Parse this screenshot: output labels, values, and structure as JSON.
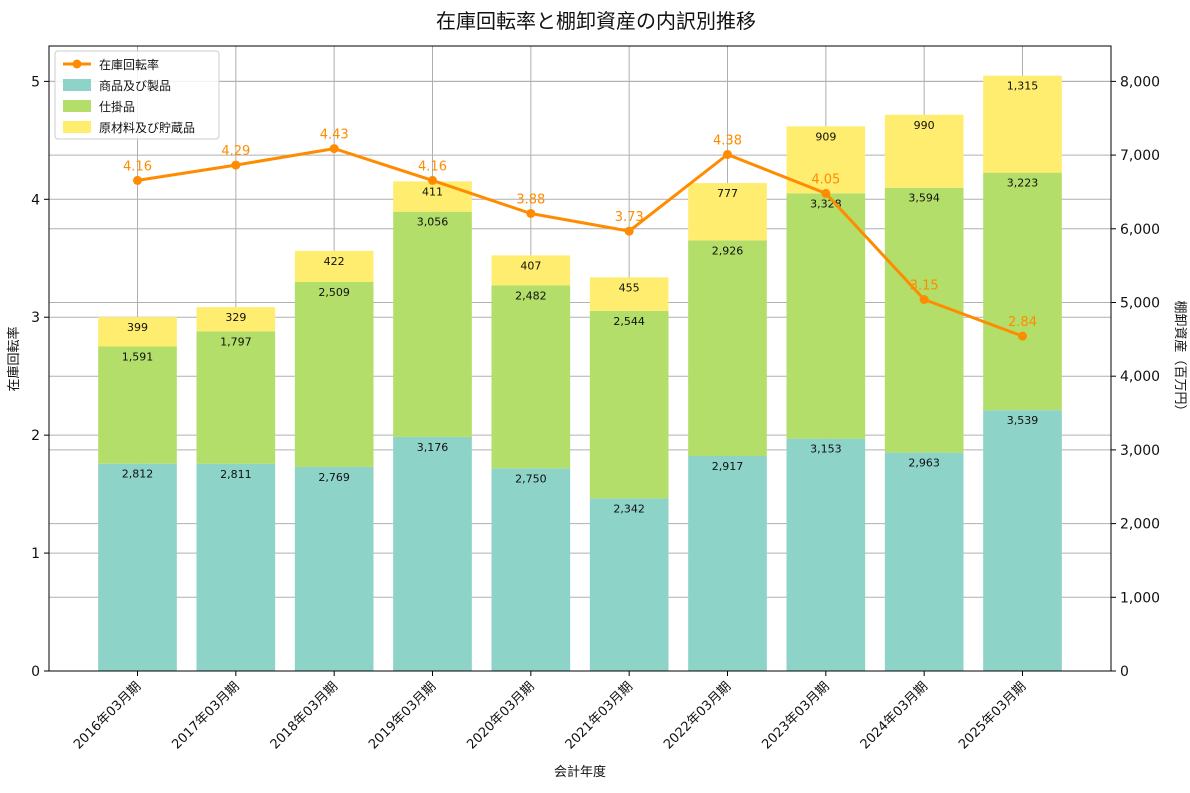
{
  "chart_data": {
    "type": "bar",
    "title": "在庫回転率と棚卸資産の内訳別推移",
    "xlabel": "会計年度",
    "ylabel_left": "在庫回転率",
    "ylabel_right": "棚卸資産（百万円）",
    "ylim_left": [
      0,
      5.3
    ],
    "ylim_right": [
      0,
      8480
    ],
    "yticks_left": [
      0,
      1,
      2,
      3,
      4,
      5
    ],
    "yticks_right": [
      0,
      1000,
      2000,
      3000,
      4000,
      5000,
      6000,
      7000,
      8000
    ],
    "ytick_labels_left": [
      "0",
      "1",
      "2",
      "3",
      "4",
      "5"
    ],
    "ytick_labels_right": [
      "0",
      "1,000",
      "2,000",
      "3,000",
      "4,000",
      "5,000",
      "6,000",
      "7,000",
      "8,000"
    ],
    "grid": true,
    "legend_placement": "top-left",
    "categories": [
      "2016年03月期",
      "2017年03月期",
      "2018年03月期",
      "2019年03月期",
      "2020年03月期",
      "2021年03月期",
      "2022年03月期",
      "2023年03月期",
      "2024年03月期",
      "2025年03月期"
    ],
    "stacked_series": [
      {
        "name": "商品及び製品",
        "color": "#8dd3c7",
        "values": [
          2812,
          2811,
          2769,
          3176,
          2750,
          2342,
          2917,
          3153,
          2963,
          3539
        ],
        "labels": [
          "2,812",
          "2,811",
          "2,769",
          "3,176",
          "2,750",
          "2,342",
          "2,917",
          "3,153",
          "2,963",
          "3,539"
        ]
      },
      {
        "name": "仕掛品",
        "color": "#b3de69",
        "values": [
          1591,
          1797,
          2509,
          3056,
          2482,
          2544,
          2926,
          3328,
          3594,
          3223
        ],
        "labels": [
          "1,591",
          "1,797",
          "2,509",
          "3,056",
          "2,482",
          "2,544",
          "2,926",
          "3,328",
          "3,594",
          "3,223"
        ]
      },
      {
        "name": "原材料及び貯蔵品",
        "color": "#ffed6f",
        "values": [
          399,
          329,
          422,
          411,
          407,
          455,
          777,
          909,
          990,
          1315
        ],
        "labels": [
          "399",
          "329",
          "422",
          "411",
          "407",
          "455",
          "777",
          "909",
          "990",
          "1,315"
        ]
      }
    ],
    "line_series": {
      "name": "在庫回転率",
      "color": "#ff8c00",
      "values": [
        4.16,
        4.29,
        4.43,
        4.16,
        3.88,
        3.73,
        4.38,
        4.05,
        3.15,
        2.84
      ],
      "labels": [
        "4.16",
        "4.29",
        "4.43",
        "4.16",
        "3.88",
        "3.73",
        "4.38",
        "4.05",
        "3.15",
        "2.84"
      ]
    }
  }
}
